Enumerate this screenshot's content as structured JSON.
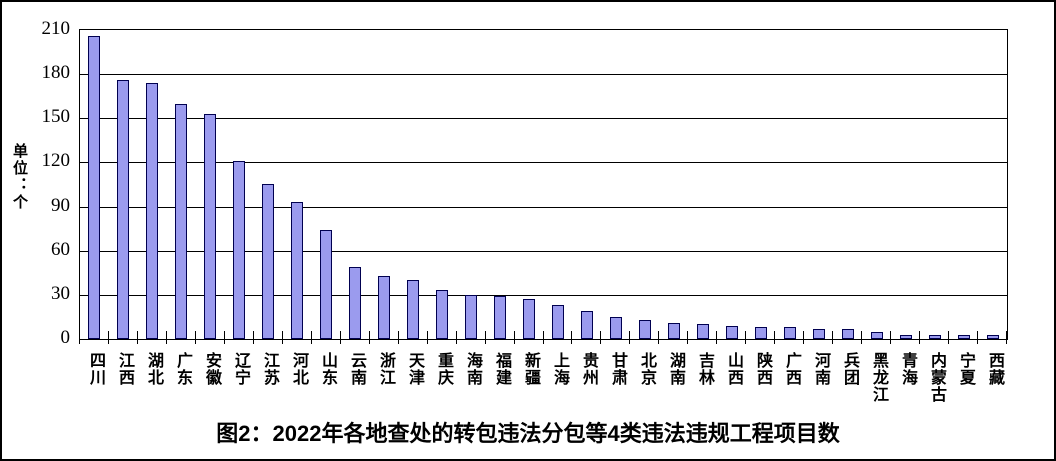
{
  "figure": {
    "title": "图2：2022年各地查处的转包违法分包等4类违法违规工程项目数",
    "y_axis_title": "单位：个"
  },
  "chart_data": {
    "type": "bar",
    "title": "图2：2022年各地查处的转包违法分包等4类违法违规工程项目数",
    "ylabel": "单位：个",
    "xlabel": "",
    "categories": [
      "四川",
      "江西",
      "湖北",
      "广东",
      "安徽",
      "辽宁",
      "江苏",
      "河北",
      "山东",
      "云南",
      "浙江",
      "天津",
      "重庆",
      "海南",
      "福建",
      "新疆",
      "上海",
      "贵州",
      "甘肃",
      "北京",
      "湖南",
      "吉林",
      "山西",
      "陕西",
      "广西",
      "河南",
      "兵团",
      "黑龙江",
      "青海",
      "内蒙古",
      "宁夏",
      "西藏"
    ],
    "values": [
      206,
      176,
      174,
      160,
      153,
      121,
      105,
      93,
      74,
      49,
      43,
      40,
      33,
      30,
      29,
      27,
      23,
      19,
      15,
      13,
      11,
      10,
      9,
      8,
      8,
      7,
      7,
      5,
      3,
      3,
      3,
      3
    ],
    "ylim": [
      0,
      210
    ],
    "yticks": [
      0,
      30,
      60,
      90,
      120,
      150,
      180,
      210
    ],
    "grid": true,
    "legend": false,
    "colors": {
      "bar_fill": "#9b9bee",
      "bar_border": "#000050",
      "axis": "#000000",
      "background": "#ffffff"
    }
  }
}
